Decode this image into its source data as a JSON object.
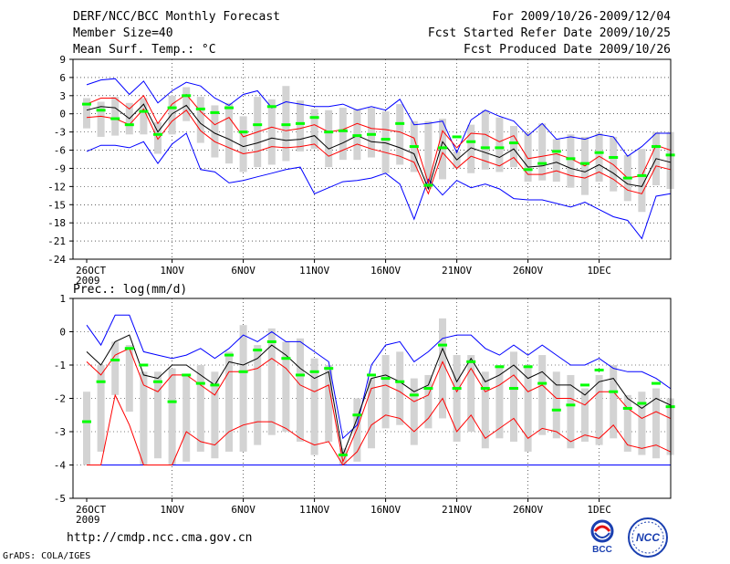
{
  "header": {
    "title": "DERF/NCC/BCC Monthly Forecast",
    "member_size": "Member Size=40",
    "variable": "Mean Surf. Temp.: °C",
    "period": "For 2009/10/26-2009/12/04",
    "started": "Fcst Started Refer Date 2009/10/25",
    "produced": "Fcst Produced Date 2009/10/26"
  },
  "lower_label": "Prec.: log(mm/d)",
  "footer_url": "http://cmdp.ncc.cma.gov.cn",
  "footer_software": "GrADS: COLA/IGES",
  "logos": {
    "bcc": "BCC",
    "ncc": "NCC"
  },
  "colors": {
    "max_min": "#0000ff",
    "pct": "#ff0000",
    "mean": "#000000",
    "box": "#d3d3d3",
    "ctrl": "#00ff00",
    "baseline": "#0000ff"
  },
  "chart_data": [
    {
      "type": "box-line",
      "title": "Mean Surf. Temp.: °C",
      "x_ticks": [
        {
          "i": 0,
          "label": "26OCT",
          "sub": "2009"
        },
        {
          "i": 6,
          "label": "1NOV"
        },
        {
          "i": 11,
          "label": "6NOV"
        },
        {
          "i": 16,
          "label": "11NOV"
        },
        {
          "i": 21,
          "label": "16NOV"
        },
        {
          "i": 26,
          "label": "21NOV"
        },
        {
          "i": 31,
          "label": "26NOV"
        },
        {
          "i": 36,
          "label": "1DEC"
        }
      ],
      "ylim": [
        -24,
        9
      ],
      "yticks": [
        -24,
        -21,
        -18,
        -15,
        -12,
        -9,
        -6,
        -3,
        0,
        3,
        6,
        9
      ],
      "series": {
        "max": [
          4.8,
          5.6,
          5.8,
          3.2,
          5.4,
          1.8,
          3.8,
          5.2,
          4.6,
          2.6,
          1.4,
          3.2,
          3.8,
          1.0,
          2.0,
          1.6,
          1.2,
          1.2,
          1.6,
          0.6,
          1.2,
          0.6,
          2.4,
          -1.8,
          -1.6,
          -1.2,
          -6.4,
          -1.0,
          0.6,
          -0.4,
          -1.2,
          -3.6,
          -1.6,
          -4.2,
          -3.8,
          -4.2,
          -3.4,
          -3.8,
          -7.0,
          -5.4,
          -3.2,
          -3.2
        ],
        "p_hi": [
          1.6,
          2.6,
          2.6,
          0.8,
          3.0,
          -1.6,
          1.6,
          3.2,
          0.4,
          -1.8,
          -0.6,
          -3.8,
          -3.0,
          -2.2,
          -2.8,
          -2.4,
          -1.8,
          -3.0,
          -2.6,
          -1.6,
          -2.4,
          -2.6,
          -3.0,
          -4.0,
          -11.4,
          -2.8,
          -5.6,
          -3.2,
          -3.4,
          -4.6,
          -3.6,
          -7.4,
          -7.0,
          -6.6,
          -7.4,
          -8.6,
          -7.0,
          -8.4,
          -10.6,
          -10.2,
          -5.2,
          -6.0
        ],
        "mean": [
          0.6,
          1.2,
          1.0,
          -0.8,
          1.6,
          -3.0,
          0.0,
          1.4,
          -1.6,
          -3.2,
          -4.2,
          -5.4,
          -4.8,
          -4.0,
          -4.4,
          -4.2,
          -3.6,
          -5.8,
          -4.8,
          -3.6,
          -4.6,
          -4.8,
          -5.6,
          -6.6,
          -12.4,
          -4.6,
          -7.6,
          -5.6,
          -6.4,
          -7.2,
          -5.8,
          -8.8,
          -8.6,
          -8.0,
          -9.0,
          -9.6,
          -8.4,
          -9.8,
          -11.6,
          -12.0,
          -7.4,
          -8.0
        ],
        "p_lo": [
          -0.6,
          -0.4,
          -0.8,
          -1.8,
          0.8,
          -4.2,
          -1.2,
          0.6,
          -2.8,
          -4.6,
          -5.6,
          -6.6,
          -6.2,
          -5.4,
          -5.6,
          -5.4,
          -5.0,
          -7.0,
          -6.0,
          -5.0,
          -5.8,
          -6.4,
          -7.0,
          -8.0,
          -13.2,
          -6.4,
          -9.0,
          -7.0,
          -7.8,
          -8.6,
          -7.2,
          -10.0,
          -10.0,
          -9.4,
          -10.2,
          -10.6,
          -9.6,
          -10.8,
          -12.6,
          -13.2,
          -8.6,
          -9.2
        ],
        "min": [
          -6.2,
          -5.2,
          -5.2,
          -5.6,
          -4.6,
          -8.2,
          -5.0,
          -3.2,
          -9.2,
          -9.6,
          -11.4,
          -11.0,
          -10.4,
          -9.8,
          -9.2,
          -8.8,
          -13.2,
          -12.2,
          -11.2,
          -11.0,
          -10.6,
          -9.8,
          -11.6,
          -17.4,
          -10.8,
          -13.4,
          -11.0,
          -12.2,
          -11.6,
          -12.4,
          -14.0,
          -14.2,
          -14.2,
          -14.8,
          -15.4,
          -14.6,
          -15.8,
          -17.0,
          -17.6,
          -20.6,
          -13.6,
          -13.2
        ],
        "box_top": [
          2.6,
          2.0,
          2.8,
          1.8,
          2.6,
          -1.4,
          3.0,
          4.4,
          2.8,
          1.4,
          1.8,
          -0.4,
          2.8,
          2.4,
          4.6,
          2.2,
          0.8,
          0.6,
          1.0,
          0.8,
          1.0,
          0.4,
          1.6,
          -1.2,
          -1.2,
          -0.8,
          -6.2,
          -1.8,
          0.6,
          -0.6,
          -2.0,
          -3.2,
          -1.6,
          -4.2,
          -3.4,
          -3.8,
          -3.2,
          -3.8,
          -6.8,
          -5.8,
          -3.0,
          -3.0
        ],
        "box_bot": [
          -2.4,
          -3.8,
          -3.6,
          -3.4,
          -3.4,
          -6.6,
          -3.4,
          -1.2,
          -4.8,
          -7.2,
          -8.2,
          -9.6,
          -8.8,
          -8.4,
          -7.8,
          -6.2,
          -5.8,
          -8.8,
          -7.6,
          -7.6,
          -7.2,
          -9.8,
          -8.4,
          -9.6,
          -12.4,
          -10.8,
          -9.0,
          -9.8,
          -9.2,
          -9.6,
          -8.8,
          -11.2,
          -11.0,
          -11.2,
          -12.2,
          -13.4,
          -11.2,
          -12.8,
          -14.4,
          -16.2,
          -11.8,
          -12.4
        ],
        "ctrl": [
          1.6,
          0.6,
          -0.8,
          -1.8,
          0.4,
          -3.4,
          1.0,
          3.0,
          0.8,
          0.2,
          1.0,
          -3.0,
          -1.8,
          1.2,
          -1.8,
          -1.6,
          -0.6,
          -3.0,
          -2.8,
          -3.6,
          -3.4,
          -4.2,
          -1.6,
          -5.4,
          -11.8,
          -5.6,
          -3.8,
          -4.6,
          -5.6,
          -5.6,
          -4.8,
          -9.2,
          -8.2,
          -6.2,
          -7.4,
          -8.2,
          -6.4,
          -7.2,
          -10.6,
          -10.2,
          -5.4,
          -6.8
        ]
      }
    },
    {
      "type": "box-line",
      "title": "Prec.: log(mm/d)",
      "x_ticks": [
        {
          "i": 0,
          "label": "26OCT",
          "sub": "2009"
        },
        {
          "i": 6,
          "label": "1NOV"
        },
        {
          "i": 11,
          "label": "6NOV"
        },
        {
          "i": 16,
          "label": "11NOV"
        },
        {
          "i": 21,
          "label": "16NOV"
        },
        {
          "i": 26,
          "label": "21NOV"
        },
        {
          "i": 31,
          "label": "26NOV"
        },
        {
          "i": 36,
          "label": "1DEC"
        }
      ],
      "ylim": [
        -5,
        1
      ],
      "yticks": [
        -5,
        -4,
        -3,
        -2,
        -1,
        0,
        1
      ],
      "baseline": -4,
      "series": {
        "max": [
          0.2,
          -0.4,
          0.5,
          0.5,
          -0.6,
          -0.7,
          -0.8,
          -0.7,
          -0.5,
          -0.8,
          -0.5,
          -0.1,
          -0.3,
          0.0,
          -0.3,
          -0.3,
          -0.6,
          -0.9,
          -3.2,
          -2.8,
          -1.0,
          -0.4,
          -0.3,
          -0.9,
          -0.6,
          -0.2,
          -0.1,
          -0.1,
          -0.5,
          -0.7,
          -0.4,
          -0.7,
          -0.4,
          -0.7,
          -1.0,
          -1.0,
          -0.8,
          -1.1,
          -1.2,
          -1.2,
          -1.4,
          -1.7
        ],
        "mean": [
          -0.6,
          -1.0,
          -0.3,
          -0.1,
          -1.3,
          -1.4,
          -1.0,
          -1.0,
          -1.3,
          -1.6,
          -0.9,
          -1.0,
          -0.8,
          -0.4,
          -0.7,
          -1.1,
          -1.4,
          -1.2,
          -3.7,
          -2.6,
          -1.4,
          -1.3,
          -1.5,
          -1.8,
          -1.6,
          -0.5,
          -1.5,
          -0.8,
          -1.5,
          -1.3,
          -1.0,
          -1.4,
          -1.2,
          -1.6,
          -1.6,
          -1.9,
          -1.5,
          -1.4,
          -2.0,
          -2.3,
          -2.0,
          -2.2
        ],
        "p_hi": [
          -0.9,
          -1.3,
          -0.7,
          -0.5,
          -1.6,
          -1.8,
          -1.3,
          -1.3,
          -1.6,
          -1.9,
          -1.2,
          -1.2,
          -1.1,
          -0.8,
          -1.1,
          -1.6,
          -1.8,
          -1.6,
          -3.9,
          -2.9,
          -1.7,
          -1.6,
          -1.8,
          -2.1,
          -1.9,
          -0.9,
          -1.8,
          -1.1,
          -1.8,
          -1.6,
          -1.3,
          -1.8,
          -1.6,
          -2.0,
          -2.0,
          -2.2,
          -1.8,
          -1.8,
          -2.3,
          -2.6,
          -2.4,
          -2.6
        ],
        "p_lo": [
          -4.0,
          -4.0,
          -1.9,
          -2.8,
          -4.0,
          -4.0,
          -4.0,
          -3.0,
          -3.3,
          -3.4,
          -3.0,
          -2.8,
          -2.7,
          -2.7,
          -2.9,
          -3.2,
          -3.4,
          -3.3,
          -4.0,
          -3.6,
          -2.8,
          -2.5,
          -2.6,
          -3.0,
          -2.6,
          -2.0,
          -3.0,
          -2.5,
          -3.2,
          -2.9,
          -2.6,
          -3.2,
          -2.9,
          -3.0,
          -3.3,
          -3.1,
          -3.2,
          -2.8,
          -3.4,
          -3.5,
          -3.4,
          -3.6
        ],
        "min": [
          -4.0,
          -4.0,
          -4.0,
          -4.0,
          -4.0,
          -4.0,
          -4.0,
          -4.0,
          -4.0,
          -4.0,
          -4.0,
          -4.0,
          -4.0,
          -4.0,
          -4.0,
          -4.0,
          -4.0,
          -4.0,
          -4.0,
          -4.0,
          -4.0,
          -4.0,
          -4.0,
          -4.0,
          -4.0,
          -4.0,
          -4.0,
          -4.0,
          -4.0,
          -4.0,
          -4.0,
          -4.0,
          -4.0,
          -4.0,
          -4.0,
          -4.0,
          -4.0,
          -4.0,
          -4.0,
          -4.0,
          -4.0,
          -4.0
        ],
        "box_top": [
          -1.8,
          -1.0,
          -0.3,
          -0.4,
          -1.2,
          -1.2,
          -1.1,
          -1.3,
          -1.0,
          -1.2,
          -0.6,
          0.2,
          -0.4,
          0.1,
          -0.3,
          -0.2,
          -0.8,
          -1.0,
          -3.5,
          -2.0,
          -1.4,
          -0.7,
          -0.6,
          -1.4,
          -1.3,
          0.4,
          -0.7,
          -0.7,
          -1.2,
          -1.0,
          -0.6,
          -1.0,
          -0.7,
          -1.2,
          -1.3,
          -1.7,
          -1.3,
          -1.0,
          -1.9,
          -1.8,
          -1.7,
          -2.0
        ],
        "box_bot": [
          -4.0,
          -3.6,
          -1.9,
          -2.4,
          -4.0,
          -3.8,
          -4.0,
          -3.9,
          -3.6,
          -3.8,
          -3.6,
          -3.6,
          -3.4,
          -3.1,
          -3.0,
          -3.3,
          -3.7,
          -3.3,
          -4.0,
          -3.9,
          -3.5,
          -2.9,
          -2.8,
          -3.4,
          -2.9,
          -2.6,
          -3.3,
          -3.0,
          -3.5,
          -3.2,
          -3.3,
          -3.6,
          -3.1,
          -3.2,
          -3.5,
          -3.3,
          -3.4,
          -3.2,
          -3.6,
          -3.7,
          -3.8,
          -3.7
        ],
        "ctrl": [
          -2.7,
          -1.5,
          -0.85,
          -0.5,
          -1.0,
          -1.5,
          -2.1,
          -1.3,
          -1.55,
          -1.6,
          -0.7,
          -1.2,
          -0.55,
          -0.3,
          -0.8,
          -1.3,
          -1.2,
          -1.1,
          -3.7,
          -2.5,
          -1.3,
          -1.4,
          -1.5,
          -1.9,
          -1.7,
          -0.4,
          -1.7,
          -0.9,
          -1.7,
          -1.05,
          -1.7,
          -1.05,
          -1.55,
          -2.35,
          -2.2,
          -1.6,
          -1.15,
          -1.8,
          -2.3,
          -2.15,
          -1.55,
          -2.25
        ]
      }
    }
  ]
}
